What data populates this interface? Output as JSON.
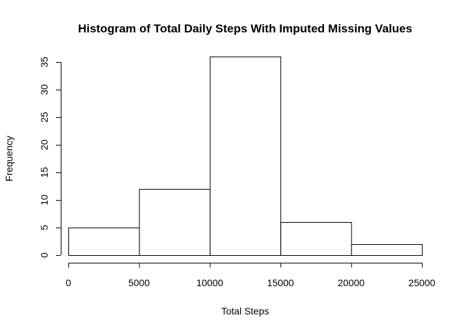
{
  "chart_data": {
    "type": "bar",
    "title": "Histogram of Total Daily Steps With Imputed Missing Values",
    "xlabel": "Total Steps",
    "ylabel": "Frequency",
    "bins": [
      {
        "from": 0,
        "to": 5000,
        "count": 5
      },
      {
        "from": 5000,
        "to": 10000,
        "count": 12
      },
      {
        "from": 10000,
        "to": 15000,
        "count": 36
      },
      {
        "from": 15000,
        "to": 20000,
        "count": 6
      },
      {
        "from": 20000,
        "to": 25000,
        "count": 2
      }
    ],
    "xlim": [
      0,
      25000
    ],
    "ylim": [
      0,
      35
    ],
    "xticks": [
      "0",
      "5000",
      "10000",
      "15000",
      "20000",
      "25000"
    ],
    "yticks": [
      "0",
      "5",
      "10",
      "15",
      "20",
      "25",
      "30",
      "35"
    ],
    "grid": false,
    "colors": {
      "bar_fill": "#ffffff",
      "bar_stroke": "#000000"
    }
  }
}
